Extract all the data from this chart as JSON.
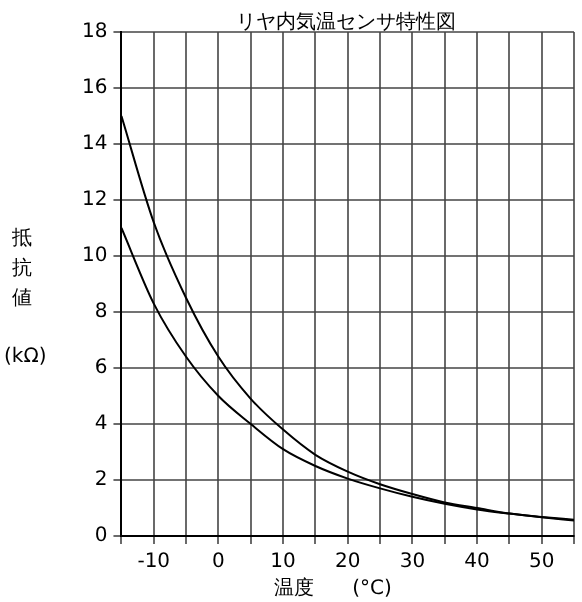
{
  "chart_data": {
    "type": "line",
    "title": "リヤ内気温センサ特性図",
    "xlabel": "温度      (°C)",
    "ylabel": "抵抗値 (kΩ)",
    "x": [
      -15,
      -10,
      -5,
      0,
      5,
      10,
      15,
      20,
      25,
      30,
      35,
      40,
      45,
      50,
      55
    ],
    "series": [
      {
        "color": "#000000",
        "values": [
          15,
          11.2,
          8.5,
          6.4,
          4.9,
          3.8,
          2.9,
          2.3,
          1.85,
          1.5,
          1.2,
          1.0,
          0.8,
          0.68,
          0.58
        ]
      },
      {
        "color": "#000000",
        "values": [
          11,
          8.3,
          6.4,
          5.0,
          4.0,
          3.1,
          2.5,
          2.05,
          1.7,
          1.4,
          1.15,
          0.95,
          0.8,
          0.67,
          0.55
        ]
      }
    ],
    "xlim": [
      -15,
      55
    ],
    "xticks": [
      {
        "value": -15,
        "label": null
      },
      -10,
      {
        "value": -5,
        "label": null
      },
      0,
      {
        "value": 5,
        "label": null
      },
      10,
      {
        "value": 15,
        "label": null
      },
      20,
      {
        "value": 25,
        "label": null
      },
      30,
      {
        "value": 35,
        "label": null
      },
      40,
      {
        "value": 45,
        "label": null
      },
      50,
      {
        "value": 55,
        "label": null
      }
    ],
    "ylim": [
      0,
      18
    ],
    "yticks": [
      0,
      2,
      4,
      6,
      8,
      10,
      12,
      14,
      16,
      18
    ],
    "grid": true,
    "marker": "none",
    "line_style": "solid",
    "legend": false
  }
}
